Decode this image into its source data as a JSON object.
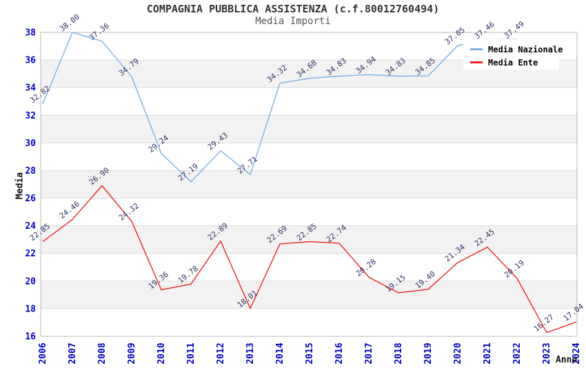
{
  "chart_data": {
    "type": "line",
    "title": "COMPAGNIA PUBBLICA ASSISTENZA (c.f.80012760494)",
    "subtitle": "Media Importi",
    "xlabel": "Anno",
    "ylabel": "Media",
    "ylim": [
      16,
      38
    ],
    "yticks": [
      16,
      18,
      20,
      22,
      24,
      26,
      28,
      30,
      32,
      34,
      36,
      38
    ],
    "grid": true,
    "legend_position": "top-right",
    "categories": [
      "2006",
      "2007",
      "2008",
      "2009",
      "2010",
      "2011",
      "2012",
      "2013",
      "2014",
      "2015",
      "2016",
      "2017",
      "2018",
      "2019",
      "2020",
      "2021",
      "2022",
      "2023",
      "2024"
    ],
    "series": [
      {
        "name": "Media Nazionale",
        "color": "#7DB0E3",
        "values": [
          32.82,
          38.0,
          37.36,
          34.79,
          29.24,
          27.19,
          29.43,
          27.71,
          34.32,
          34.68,
          34.83,
          34.94,
          34.83,
          34.85,
          37.05,
          37.46,
          37.49,
          null,
          null
        ]
      },
      {
        "name": "Media Ente",
        "color": "#EE2222",
        "values": [
          22.85,
          24.46,
          26.9,
          24.32,
          19.36,
          19.78,
          22.89,
          18.01,
          22.69,
          22.85,
          22.74,
          20.28,
          19.15,
          19.4,
          21.34,
          22.45,
          20.19,
          16.27,
          17.04
        ]
      }
    ],
    "band_ranges": [
      [
        34,
        36
      ],
      [
        30,
        32
      ],
      [
        26,
        28
      ],
      [
        22,
        24
      ],
      [
        18,
        20
      ]
    ],
    "colors": {
      "band": "#f2f2f2",
      "grid": "#dcdcdc",
      "plot_border": "#b4b4b4",
      "axis_tick_label": "#0000CC",
      "value_label": "#333366",
      "title": "#333333",
      "subtitle": "#555555"
    }
  }
}
